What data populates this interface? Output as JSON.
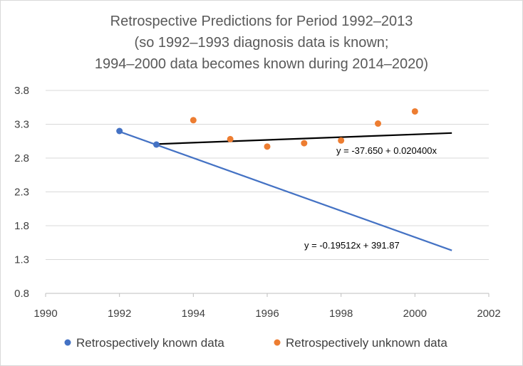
{
  "chart_data": {
    "type": "scatter",
    "title": [
      "Retrospective Predictions for Period 1992–2013",
      "(so 1992–1993 diagnosis data is known;",
      "1994–2000 data becomes known during 2014–2020)"
    ],
    "xlabel": "",
    "ylabel": "",
    "xlim": [
      1990,
      2002
    ],
    "ylim": [
      0.8,
      3.8
    ],
    "x_ticks": [
      1990,
      1992,
      1994,
      1996,
      1998,
      2000,
      2002
    ],
    "y_ticks": [
      0.8,
      1.3,
      1.8,
      2.3,
      2.8,
      3.3,
      3.8
    ],
    "x_grid": false,
    "y_grid": true,
    "legend_position": "bottom",
    "series": [
      {
        "name": "Retrospectively known data",
        "color": "#4472c4",
        "points": [
          {
            "x": 1992,
            "y": 3.2
          },
          {
            "x": 1993,
            "y": 3.0
          }
        ]
      },
      {
        "name": "Retrospectively unknown data",
        "color": "#ed7d31",
        "points": [
          {
            "x": 1994,
            "y": 3.36
          },
          {
            "x": 1995,
            "y": 3.08
          },
          {
            "x": 1996,
            "y": 2.97
          },
          {
            "x": 1997,
            "y": 3.02
          },
          {
            "x": 1998,
            "y": 3.06
          },
          {
            "x": 1999,
            "y": 3.31
          },
          {
            "x": 2000,
            "y": 3.49
          }
        ]
      }
    ],
    "trendlines": [
      {
        "name": "known-trend",
        "color": "#4472c4",
        "x_start": 1992,
        "x_end": 2001,
        "intercept": 391.87,
        "slope": -0.19512,
        "equation": "y = -0.19512x + 391.87"
      },
      {
        "name": "unknown-trend",
        "color": "#000000",
        "x_start": 1993,
        "x_end": 2001,
        "intercept": -37.65,
        "slope": 0.0204,
        "equation": "y = -37.650 + 0.020400x"
      }
    ]
  }
}
